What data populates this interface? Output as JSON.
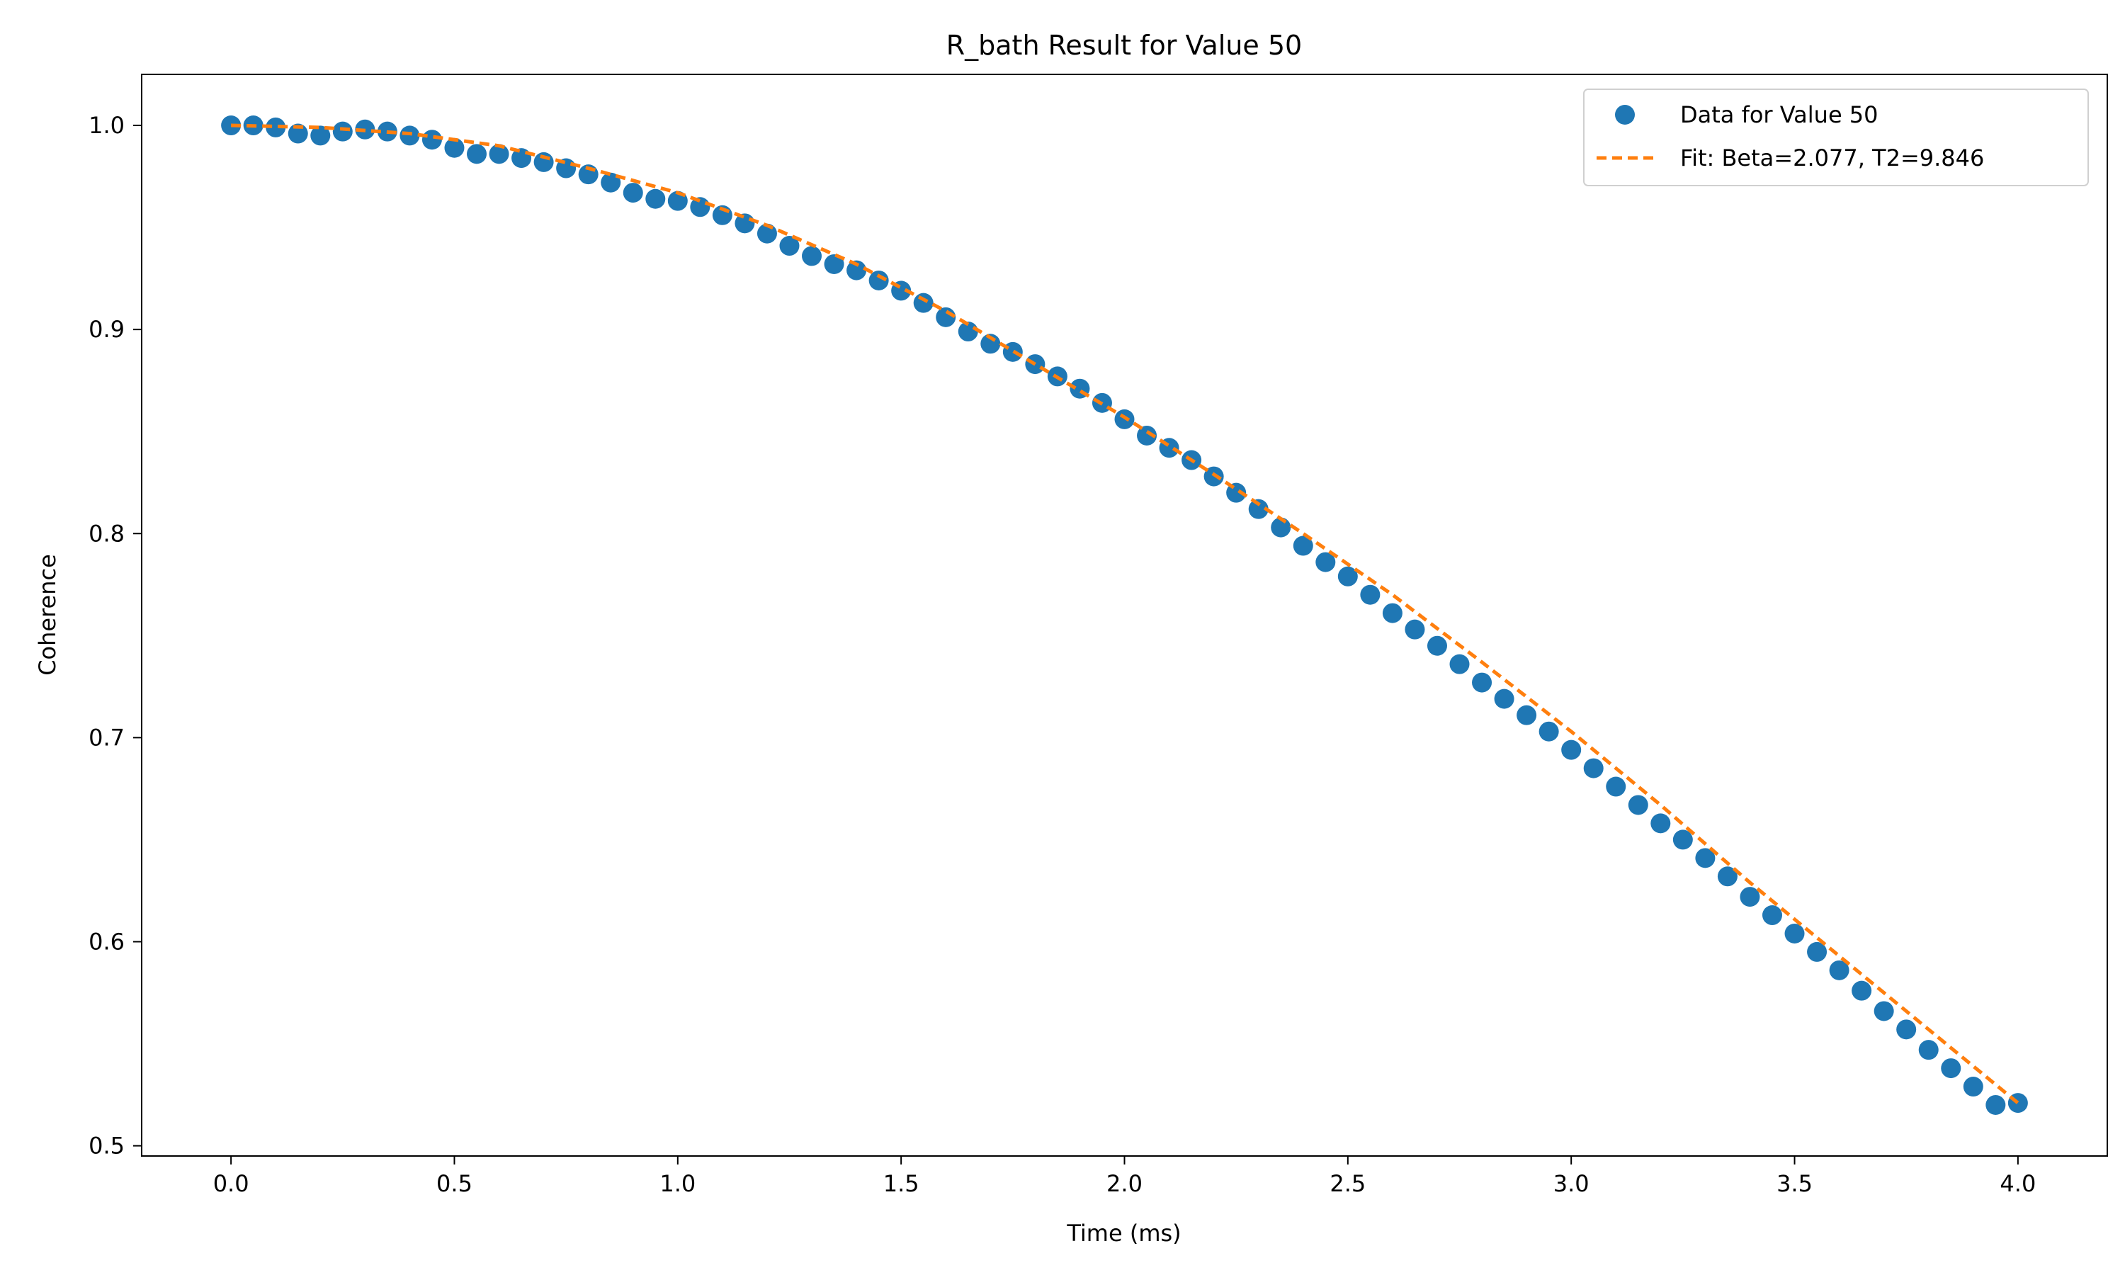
{
  "chart_data": {
    "type": "scatter",
    "title": "R_bath Result for Value 50",
    "xlabel": "Time (ms)",
    "ylabel": "Coherence",
    "xlim": [
      -0.2,
      4.2
    ],
    "ylim": [
      0.495,
      1.025
    ],
    "xticks": [
      0.0,
      0.5,
      1.0,
      1.5,
      2.0,
      2.5,
      3.0,
      3.5,
      4.0
    ],
    "xtick_labels": [
      "0.0",
      "0.5",
      "1.0",
      "1.5",
      "2.0",
      "2.5",
      "3.0",
      "3.5",
      "4.0"
    ],
    "yticks": [
      0.5,
      0.6,
      0.7,
      0.8,
      0.9,
      1.0
    ],
    "ytick_labels": [
      "0.5",
      "0.6",
      "0.7",
      "0.8",
      "0.9",
      "1.0"
    ],
    "grid": false,
    "legend_position": "upper right",
    "series": [
      {
        "name": "Data for Value 50",
        "kind": "scatter",
        "color": "#1f77b4",
        "x": [
          0.0,
          0.05,
          0.1,
          0.15,
          0.2,
          0.25,
          0.3,
          0.35,
          0.4,
          0.45,
          0.5,
          0.55,
          0.6,
          0.65,
          0.7,
          0.75,
          0.8,
          0.85,
          0.9,
          0.95,
          1.0,
          1.05,
          1.1,
          1.15,
          1.2,
          1.25,
          1.3,
          1.35,
          1.4,
          1.45,
          1.5,
          1.55,
          1.6,
          1.65,
          1.7,
          1.75,
          1.8,
          1.85,
          1.9,
          1.95,
          2.0,
          2.05,
          2.1,
          2.15,
          2.2,
          2.25,
          2.3,
          2.35,
          2.4,
          2.45,
          2.5,
          2.55,
          2.6,
          2.65,
          2.7,
          2.75,
          2.8,
          2.85,
          2.9,
          2.95,
          3.0,
          3.05,
          3.1,
          3.15,
          3.2,
          3.25,
          3.3,
          3.35,
          3.4,
          3.45,
          3.5,
          3.55,
          3.6,
          3.65,
          3.7,
          3.75,
          3.8,
          3.85,
          3.9,
          3.95,
          4.0
        ],
        "y": [
          1.0,
          1.0,
          0.999,
          0.996,
          0.995,
          0.997,
          0.998,
          0.997,
          0.995,
          0.993,
          0.989,
          0.986,
          0.986,
          0.984,
          0.982,
          0.979,
          0.976,
          0.972,
          0.967,
          0.964,
          0.963,
          0.96,
          0.956,
          0.952,
          0.947,
          0.941,
          0.936,
          0.932,
          0.929,
          0.924,
          0.919,
          0.913,
          0.906,
          0.899,
          0.893,
          0.889,
          0.883,
          0.877,
          0.871,
          0.864,
          0.856,
          0.848,
          0.842,
          0.836,
          0.828,
          0.82,
          0.812,
          0.803,
          0.794,
          0.786,
          0.779,
          0.77,
          0.761,
          0.753,
          0.745,
          0.736,
          0.727,
          0.719,
          0.711,
          0.703,
          0.694,
          0.685,
          0.676,
          0.667,
          0.658,
          0.65,
          0.641,
          0.632,
          0.622,
          0.613,
          0.604,
          0.595,
          0.586,
          0.576,
          0.566,
          0.557,
          0.547,
          0.538,
          0.529,
          0.52,
          0.521
        ]
      },
      {
        "name": "Fit: Beta=2.077, T2=9.846",
        "kind": "line",
        "style": "dashed",
        "color": "#ff7f0e",
        "x": [
          0.0,
          0.2,
          0.4,
          0.6,
          0.8,
          1.0,
          1.2,
          1.4,
          1.6,
          1.8,
          2.0,
          2.2,
          2.4,
          2.6,
          2.8,
          3.0,
          3.2,
          3.4,
          3.6,
          3.8,
          4.0
        ],
        "y": [
          1.0,
          0.999,
          0.996,
          0.99,
          0.979,
          0.967,
          0.951,
          0.932,
          0.909,
          0.883,
          0.857,
          0.829,
          0.8,
          0.77,
          0.737,
          0.703,
          0.667,
          0.629,
          0.593,
          0.557,
          0.521
        ]
      }
    ]
  }
}
